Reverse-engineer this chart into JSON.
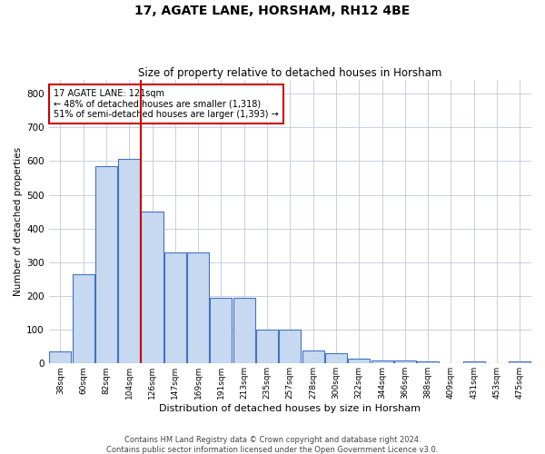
{
  "title": "17, AGATE LANE, HORSHAM, RH12 4BE",
  "subtitle": "Size of property relative to detached houses in Horsham",
  "xlabel": "Distribution of detached houses by size in Horsham",
  "ylabel": "Number of detached properties",
  "categories": [
    "38sqm",
    "60sqm",
    "82sqm",
    "104sqm",
    "126sqm",
    "147sqm",
    "169sqm",
    "191sqm",
    "213sqm",
    "235sqm",
    "257sqm",
    "278sqm",
    "300sqm",
    "322sqm",
    "344sqm",
    "366sqm",
    "388sqm",
    "409sqm",
    "431sqm",
    "453sqm",
    "475sqm"
  ],
  "values": [
    35,
    265,
    585,
    605,
    450,
    330,
    330,
    195,
    195,
    100,
    100,
    38,
    30,
    15,
    10,
    10,
    5,
    0,
    5,
    0,
    5
  ],
  "bar_color": "#c6d9f0",
  "bar_edge_color": "#4472c4",
  "marker_line_color": "#cc0000",
  "annotation_box_color": "#ffffff",
  "annotation_box_edge": "#cc0000",
  "annotation_text_line1": "17 AGATE LANE: 121sqm",
  "annotation_text_line2": "← 48% of detached houses are smaller (1,318)",
  "annotation_text_line3": "51% of semi-detached houses are larger (1,393) →",
  "ylim": [
    0,
    840
  ],
  "yticks": [
    0,
    100,
    200,
    300,
    400,
    500,
    600,
    700,
    800
  ],
  "background_color": "#ffffff",
  "grid_color": "#c0c8d8",
  "footer_line1": "Contains HM Land Registry data © Crown copyright and database right 2024.",
  "footer_line2": "Contains public sector information licensed under the Open Government Licence v3.0."
}
